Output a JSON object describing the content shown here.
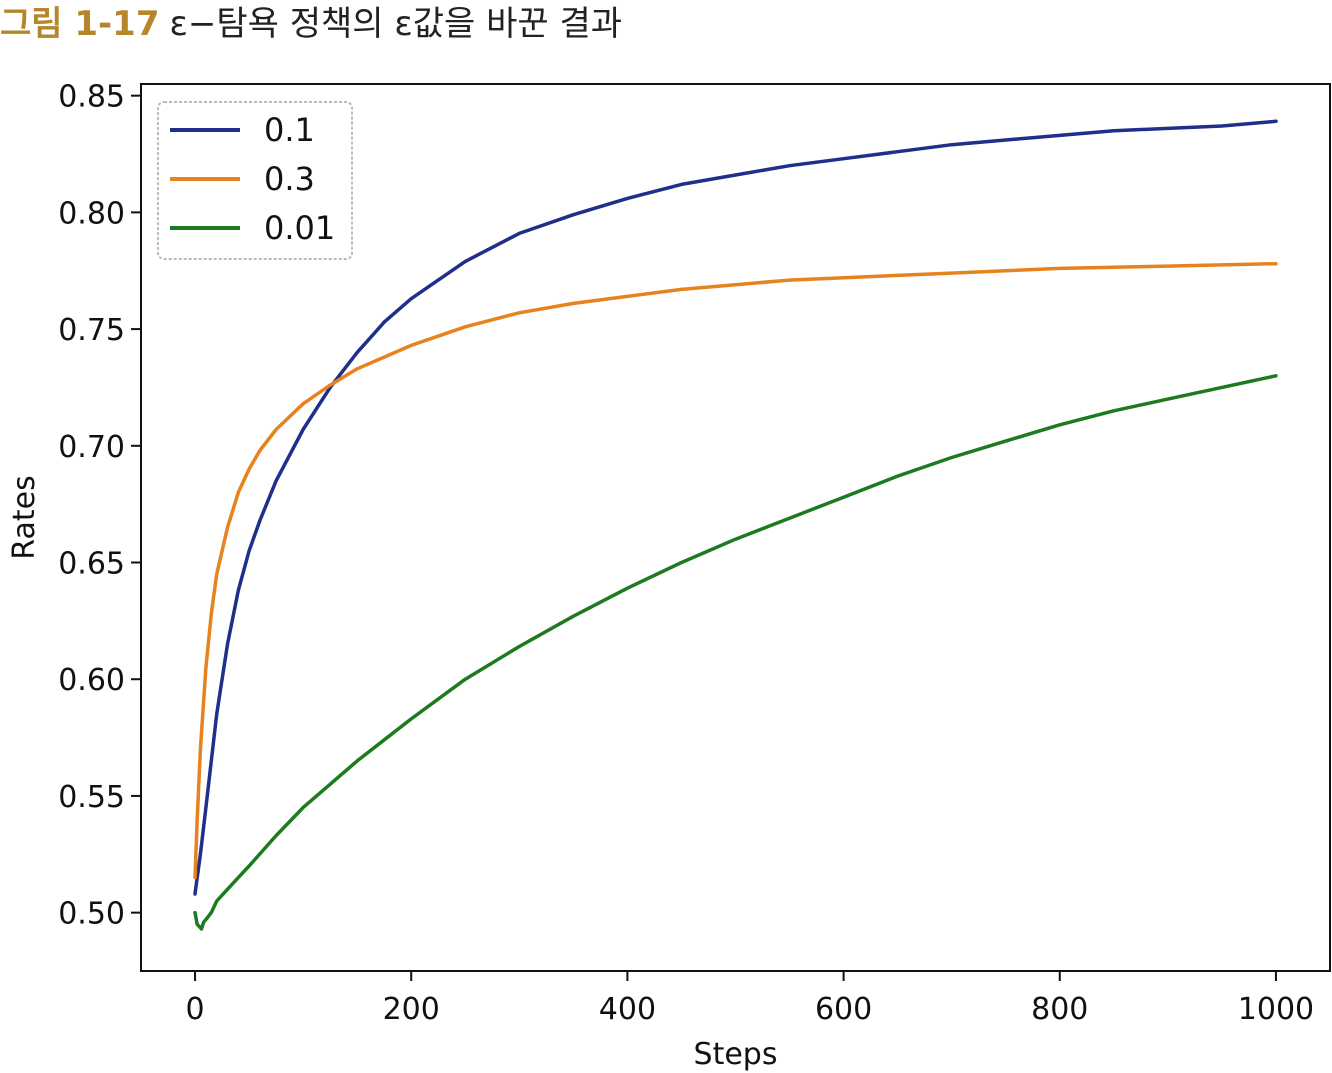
{
  "caption": {
    "label": "그림 1-17",
    "text": "ε−탐욕 정책의 ε값을 바꾼 결과"
  },
  "chart_data": {
    "type": "line",
    "xlabel": "Steps",
    "ylabel": "Rates",
    "xlim": [
      -50,
      1050
    ],
    "ylim": [
      0.475,
      0.855
    ],
    "xticks": [
      0,
      200,
      400,
      600,
      800,
      1000
    ],
    "xtick_labels": [
      "0",
      "200",
      "400",
      "600",
      "800",
      "1000"
    ],
    "yticks": [
      0.5,
      0.55,
      0.6,
      0.65,
      0.7,
      0.75,
      0.8,
      0.85
    ],
    "ytick_labels": [
      "0.50",
      "0.55",
      "0.60",
      "0.65",
      "0.70",
      "0.75",
      "0.80",
      "0.85"
    ],
    "grid": false,
    "legend": {
      "placement": "upper-left",
      "entries": [
        "0.1",
        "0.3",
        "0.01"
      ]
    },
    "series": [
      {
        "name": "0.1",
        "color": "#1f2f8a",
        "x": [
          0,
          2,
          5,
          10,
          15,
          20,
          30,
          40,
          50,
          60,
          75,
          100,
          125,
          150,
          175,
          200,
          250,
          300,
          350,
          400,
          450,
          500,
          550,
          600,
          650,
          700,
          750,
          800,
          850,
          900,
          950,
          1000
        ],
        "y": [
          0.508,
          0.515,
          0.525,
          0.545,
          0.565,
          0.585,
          0.615,
          0.638,
          0.655,
          0.668,
          0.685,
          0.707,
          0.725,
          0.74,
          0.753,
          0.763,
          0.779,
          0.791,
          0.799,
          0.806,
          0.812,
          0.816,
          0.82,
          0.823,
          0.826,
          0.829,
          0.831,
          0.833,
          0.835,
          0.836,
          0.837,
          0.839
        ]
      },
      {
        "name": "0.3",
        "color": "#e8821e",
        "x": [
          0,
          2,
          5,
          10,
          15,
          20,
          30,
          40,
          50,
          60,
          75,
          100,
          125,
          150,
          175,
          200,
          250,
          300,
          350,
          400,
          450,
          500,
          550,
          600,
          650,
          700,
          750,
          800,
          850,
          900,
          950,
          1000
        ],
        "y": [
          0.515,
          0.54,
          0.57,
          0.605,
          0.628,
          0.645,
          0.665,
          0.68,
          0.69,
          0.698,
          0.707,
          0.718,
          0.726,
          0.733,
          0.738,
          0.743,
          0.751,
          0.757,
          0.761,
          0.764,
          0.767,
          0.769,
          0.771,
          0.772,
          0.773,
          0.774,
          0.775,
          0.776,
          0.7765,
          0.777,
          0.7775,
          0.778
        ]
      },
      {
        "name": "0.01",
        "color": "#1e7a1e",
        "x": [
          0,
          2,
          4,
          6,
          8,
          10,
          15,
          20,
          30,
          40,
          50,
          75,
          100,
          150,
          200,
          250,
          300,
          350,
          400,
          450,
          500,
          550,
          600,
          650,
          700,
          750,
          800,
          850,
          900,
          950,
          1000
        ],
        "y": [
          0.5,
          0.495,
          0.494,
          0.493,
          0.496,
          0.497,
          0.5,
          0.505,
          0.51,
          0.515,
          0.52,
          0.533,
          0.545,
          0.565,
          0.583,
          0.6,
          0.614,
          0.627,
          0.639,
          0.65,
          0.66,
          0.669,
          0.678,
          0.687,
          0.695,
          0.702,
          0.709,
          0.715,
          0.72,
          0.725,
          0.73
        ]
      }
    ]
  }
}
